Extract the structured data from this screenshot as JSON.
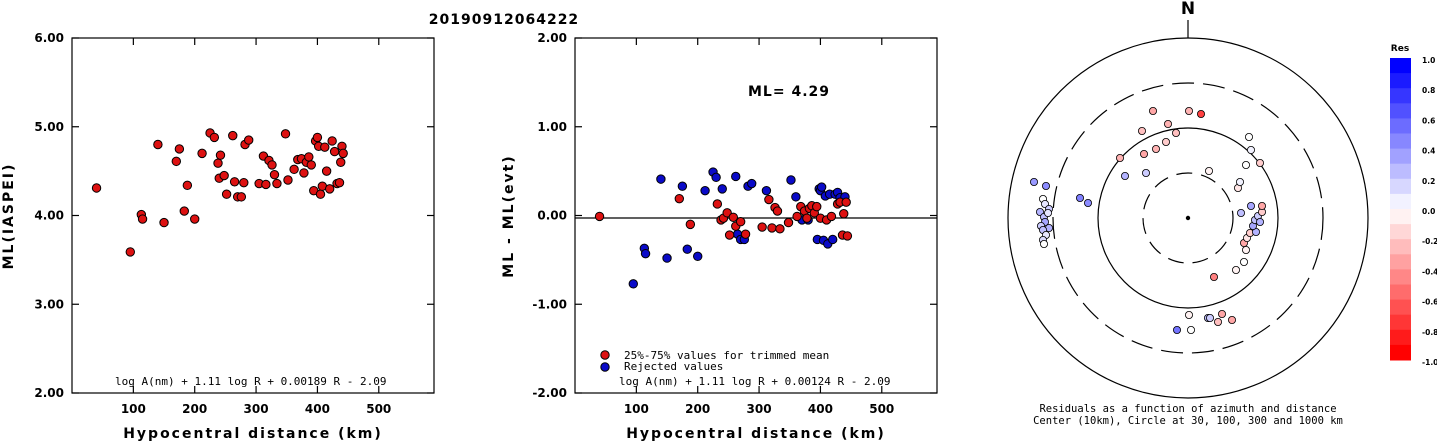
{
  "title": "20190912064222",
  "colors": {
    "accepted": "#dd1111",
    "rejected": "#0a0ac8",
    "frame": "#000000"
  },
  "chart_data": [
    {
      "type": "scatter",
      "xlabel": "Hypocentral distance (km)",
      "ylabel": "ML(IASPEI)",
      "xlim": [
        0,
        590
      ],
      "ylim": [
        2.0,
        6.0
      ],
      "xticks": [
        "100",
        "200",
        "300",
        "400",
        "500"
      ],
      "xtick_values": [
        100,
        200,
        300,
        400,
        500
      ],
      "yticks": [
        "2.00",
        "3.00",
        "4.00",
        "5.00",
        "6.00"
      ],
      "ytick_values": [
        2,
        3,
        4,
        5,
        6
      ],
      "formula": "log A(nm) + 1.11 log R + 0.00189 R - 2.09",
      "points": [
        [
          40,
          4.31
        ],
        [
          95,
          3.59
        ],
        [
          113,
          4.01
        ],
        [
          115,
          3.96
        ],
        [
          140,
          4.8
        ],
        [
          150,
          3.92
        ],
        [
          170,
          4.61
        ],
        [
          175,
          4.75
        ],
        [
          183,
          4.05
        ],
        [
          188,
          4.34
        ],
        [
          200,
          3.96
        ],
        [
          212,
          4.7
        ],
        [
          225,
          4.93
        ],
        [
          232,
          4.88
        ],
        [
          238,
          4.59
        ],
        [
          240,
          4.42
        ],
        [
          242,
          4.68
        ],
        [
          248,
          4.45
        ],
        [
          252,
          4.24
        ],
        [
          262,
          4.9
        ],
        [
          265,
          4.38
        ],
        [
          270,
          4.21
        ],
        [
          276,
          4.21
        ],
        [
          280,
          4.37
        ],
        [
          282,
          4.8
        ],
        [
          288,
          4.85
        ],
        [
          305,
          4.36
        ],
        [
          312,
          4.67
        ],
        [
          316,
          4.35
        ],
        [
          321,
          4.62
        ],
        [
          326,
          4.57
        ],
        [
          330,
          4.46
        ],
        [
          334,
          4.36
        ],
        [
          348,
          4.92
        ],
        [
          352,
          4.4
        ],
        [
          362,
          4.52
        ],
        [
          368,
          4.63
        ],
        [
          374,
          4.64
        ],
        [
          378,
          4.48
        ],
        [
          382,
          4.6
        ],
        [
          386,
          4.66
        ],
        [
          390,
          4.57
        ],
        [
          394,
          4.28
        ],
        [
          397,
          4.84
        ],
        [
          400,
          4.88
        ],
        [
          402,
          4.78
        ],
        [
          405,
          4.24
        ],
        [
          408,
          4.33
        ],
        [
          412,
          4.77
        ],
        [
          415,
          4.5
        ],
        [
          420,
          4.3
        ],
        [
          424,
          4.84
        ],
        [
          428,
          4.72
        ],
        [
          432,
          4.36
        ],
        [
          436,
          4.37
        ],
        [
          438,
          4.6
        ],
        [
          440,
          4.78
        ],
        [
          442,
          4.7
        ]
      ]
    },
    {
      "type": "scatter",
      "xlabel": "Hypocentral distance (km)",
      "ylabel": "ML - ML(evt)",
      "xlim": [
        0,
        590
      ],
      "ylim": [
        -2.0,
        2.0
      ],
      "xticks": [
        "100",
        "200",
        "300",
        "400",
        "500"
      ],
      "xtick_values": [
        100,
        200,
        300,
        400,
        500
      ],
      "yticks": [
        "-2.00",
        "-1.00",
        "0.00",
        "1.00",
        "2.00"
      ],
      "ytick_values": [
        -2,
        -1,
        0,
        1,
        2
      ],
      "reference_line": 0,
      "annotation": "ML= 4.29",
      "formula": "log A(nm) + 1.11 log R + 0.00124 R - 2.09",
      "legend": [
        {
          "label": "25%-75% values for trimmed mean",
          "group": "accepted"
        },
        {
          "label": "Rejected values",
          "group": "rejected"
        }
      ],
      "accepted": [
        [
          40,
          -0.01
        ],
        [
          170,
          0.19
        ],
        [
          188,
          -0.1
        ],
        [
          232,
          0.13
        ],
        [
          238,
          -0.05
        ],
        [
          242,
          -0.03
        ],
        [
          248,
          0.03
        ],
        [
          252,
          -0.22
        ],
        [
          258,
          -0.02
        ],
        [
          262,
          -0.12
        ],
        [
          270,
          -0.07
        ],
        [
          278,
          -0.21
        ],
        [
          305,
          -0.13
        ],
        [
          316,
          0.18
        ],
        [
          321,
          -0.14
        ],
        [
          326,
          0.09
        ],
        [
          330,
          0.05
        ],
        [
          334,
          -0.15
        ],
        [
          348,
          -0.08
        ],
        [
          362,
          -0.01
        ],
        [
          368,
          0.1
        ],
        [
          374,
          0.05
        ],
        [
          378,
          -0.03
        ],
        [
          382,
          0.08
        ],
        [
          386,
          0.11
        ],
        [
          390,
          0.03
        ],
        [
          394,
          0.1
        ],
        [
          400,
          -0.03
        ],
        [
          410,
          -0.05
        ],
        [
          418,
          -0.01
        ],
        [
          428,
          0.13
        ],
        [
          432,
          0.15
        ],
        [
          436,
          -0.22
        ],
        [
          438,
          0.02
        ],
        [
          442,
          0.15
        ],
        [
          444,
          -0.23
        ]
      ],
      "rejected": [
        [
          95,
          -0.77
        ],
        [
          113,
          -0.37
        ],
        [
          115,
          -0.43
        ],
        [
          140,
          0.41
        ],
        [
          150,
          -0.48
        ],
        [
          175,
          0.33
        ],
        [
          183,
          -0.38
        ],
        [
          200,
          -0.46
        ],
        [
          212,
          0.28
        ],
        [
          225,
          0.49
        ],
        [
          230,
          0.43
        ],
        [
          240,
          0.3
        ],
        [
          262,
          0.44
        ],
        [
          265,
          -0.21
        ],
        [
          270,
          -0.27
        ],
        [
          276,
          -0.27
        ],
        [
          282,
          0.33
        ],
        [
          288,
          0.36
        ],
        [
          312,
          0.28
        ],
        [
          352,
          0.4
        ],
        [
          360,
          0.21
        ],
        [
          370,
          -0.05
        ],
        [
          380,
          -0.05
        ],
        [
          395,
          -0.27
        ],
        [
          398,
          0.3
        ],
        [
          400,
          0.28
        ],
        [
          402,
          0.32
        ],
        [
          405,
          -0.28
        ],
        [
          408,
          0.22
        ],
        [
          412,
          -0.32
        ],
        [
          415,
          0.24
        ],
        [
          420,
          -0.27
        ],
        [
          424,
          0.24
        ],
        [
          428,
          0.26
        ],
        [
          432,
          0.2
        ],
        [
          440,
          0.21
        ]
      ]
    },
    {
      "type": "scatter",
      "title": "N",
      "caption_line1": "Residuals as a function of azimuth and distance",
      "caption_line2": "Center (10km), Circle at 30, 100, 300 and 1000 km",
      "rings_km": [
        30,
        100,
        300,
        1000
      ],
      "center_km": 10,
      "colorbar": {
        "title": "Res",
        "ticks": [
          "1.0",
          "0.8",
          "0.6",
          "0.4",
          "0.2",
          "0.0",
          "-0.2",
          "-0.4",
          "-0.6",
          "-0.8",
          "-1.0"
        ],
        "tick_values": [
          1.0,
          0.8,
          0.6,
          0.4,
          0.2,
          0.0,
          -0.2,
          -0.4,
          -0.6,
          -0.8,
          -1.0
        ]
      },
      "points": [
        [
          -11,
          330,
          0.55
        ],
        [
          3,
          330,
          0.0
        ],
        [
          1,
          315,
          -0.05
        ],
        [
          20,
          318,
          0.25
        ],
        [
          22,
          318,
          0.2
        ],
        [
          30,
          322,
          -0.25
        ],
        [
          34,
          314,
          -0.35
        ],
        [
          44,
          320,
          -0.35
        ],
        [
          26,
          277,
          -0.5
        ],
        [
          48,
          270,
          -0.05
        ],
        [
          56,
          262,
          0.0
        ],
        [
          58,
          250,
          -0.05
        ],
        [
          56,
          243,
          -0.35
        ],
        [
          59,
          238,
          -0.1
        ],
        [
          62,
          233,
          -0.2
        ],
        [
          68,
          232,
          0.3
        ],
        [
          65,
          226,
          0.35
        ],
        [
          67,
          220,
          0.25
        ],
        [
          70,
          216,
          0.2
        ],
        [
          72,
          222,
          0.3
        ],
        [
          74,
          212,
          -0.2
        ],
        [
          74,
          206,
          -0.35
        ],
        [
          63,
          206,
          0.35
        ],
        [
          53,
          213,
          0.25
        ],
        [
          50,
          188,
          -0.1
        ],
        [
          52,
          182,
          0.05
        ],
        [
          58,
          165,
          0.0
        ],
        [
          63,
          150,
          0.05
        ],
        [
          61,
          137,
          0.0
        ],
        [
          72,
          163,
          -0.2
        ],
        [
          21,
          171,
          -0.05
        ],
        [
          13,
          114,
          -0.75
        ],
        [
          1,
          111,
          -0.3
        ],
        [
          -35,
          111,
          -0.35
        ],
        [
          -20,
          124,
          -0.3
        ],
        [
          -12,
          133,
          -0.25
        ],
        [
          -22,
          142,
          -0.2
        ],
        [
          -46,
          131,
          -0.25
        ],
        [
          -32,
          149,
          -0.3
        ],
        [
          -44,
          154,
          -0.35
        ],
        [
          -42,
          173,
          0.2
        ],
        [
          -63,
          176,
          0.3
        ],
        [
          -68,
          158,
          -0.3
        ],
        [
          -142,
          186,
          0.45
        ],
        [
          -154,
          182,
          0.4
        ],
        [
          -108,
          198,
          0.5
        ],
        [
          -100,
          203,
          0.45
        ],
        [
          -148,
          212,
          0.3
        ],
        [
          -144,
          217,
          0.25
        ],
        [
          -143,
          222,
          0.35
        ],
        [
          -139,
          228,
          0.3
        ],
        [
          -147,
          226,
          0.2
        ],
        [
          -145,
          230,
          0.25
        ],
        [
          -142,
          235,
          0.1
        ],
        [
          -145,
          240,
          0.15
        ],
        [
          -144,
          244,
          0.0
        ],
        [
          -145,
          199,
          0.0
        ],
        [
          -143,
          204,
          0.1
        ],
        [
          -139,
          209,
          0.2
        ],
        [
          -140,
          213,
          0.1
        ]
      ]
    }
  ]
}
